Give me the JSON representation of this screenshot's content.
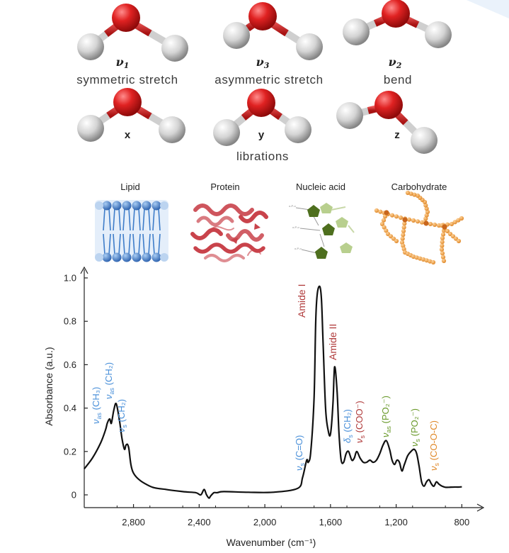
{
  "modes": {
    "v1": {
      "symbol": "ν",
      "sub": "1",
      "caption": "symmetric stretch"
    },
    "v3": {
      "symbol": "ν",
      "sub": "3",
      "caption": "asymmetric stretch"
    },
    "v2": {
      "symbol": "ν",
      "sub": "2",
      "caption": "bend"
    },
    "x": "x",
    "y": "y",
    "z": "z",
    "librations": "librations"
  },
  "biomolecules": [
    "Lipid",
    "Protein",
    "Nucleic acid",
    "Carbohydrate"
  ],
  "colors": {
    "oxygen": "#d01818",
    "hydrogen": "#d8d8d8",
    "lipid": "#3d7cc9",
    "protein": "#c9434b",
    "nucleic_green": "#4e6f1e",
    "nucleic_light": "#b8cf8e",
    "carb": "#e9a24c",
    "label_blue": "#4a90d9",
    "label_red": "#b03a3a",
    "label_green": "#6a9a2c",
    "label_orange": "#e08a2c"
  },
  "chart_data": {
    "type": "line",
    "xlabel": "Wavenumber (cm⁻¹)",
    "ylabel": "Absorbance (a.u.)",
    "xlim": [
      3100,
      780
    ],
    "ylim": [
      -0.02,
      1.05
    ],
    "xticks": [
      2800,
      2400,
      2000,
      1600,
      1200,
      800
    ],
    "xtick_labels": [
      "2,800",
      "2,400",
      "2,000",
      "1,600",
      "1,200",
      "800"
    ],
    "yticks": [
      0,
      0.2,
      0.4,
      0.6,
      0.8,
      1.0
    ],
    "ytick_labels": [
      "0",
      "0.2",
      "0.4",
      "0.6",
      "0.8",
      "1.0"
    ],
    "series": [
      {
        "x": [
          3100,
          3050,
          3000,
          2970,
          2960,
          2945,
          2935,
          2920,
          2905,
          2885,
          2870,
          2855,
          2845,
          2830,
          2800,
          2700,
          2600,
          2500,
          2420,
          2390,
          2370,
          2355,
          2340,
          2330,
          2310,
          2290,
          2250,
          2100,
          1950,
          1800,
          1770,
          1745,
          1735,
          1720,
          1700,
          1690,
          1680,
          1665,
          1655,
          1645,
          1630,
          1615,
          1600,
          1585,
          1575,
          1560,
          1548,
          1535,
          1520,
          1505,
          1490,
          1470,
          1455,
          1440,
          1420,
          1400,
          1380,
          1360,
          1340,
          1320,
          1300,
          1280,
          1260,
          1240,
          1225,
          1210,
          1195,
          1180,
          1165,
          1150,
          1130,
          1110,
          1090,
          1075,
          1060,
          1045,
          1030,
          1015,
          1000,
          985,
          970,
          955,
          940,
          920,
          900,
          880,
          850,
          820,
          800
        ],
        "y": [
          0.12,
          0.17,
          0.24,
          0.3,
          0.33,
          0.35,
          0.33,
          0.39,
          0.42,
          0.34,
          0.26,
          0.21,
          0.23,
          0.22,
          0.1,
          0.04,
          0.025,
          0.015,
          0.01,
          0.0,
          0.025,
          0.0,
          -0.015,
          -0.005,
          0.01,
          0.01,
          0.015,
          0.012,
          0.012,
          0.03,
          0.08,
          0.16,
          0.15,
          0.2,
          0.45,
          0.8,
          0.93,
          0.96,
          0.9,
          0.7,
          0.4,
          0.3,
          0.28,
          0.42,
          0.59,
          0.48,
          0.28,
          0.16,
          0.15,
          0.19,
          0.2,
          0.16,
          0.17,
          0.2,
          0.17,
          0.15,
          0.15,
          0.16,
          0.15,
          0.16,
          0.19,
          0.23,
          0.25,
          0.21,
          0.16,
          0.14,
          0.16,
          0.15,
          0.11,
          0.14,
          0.18,
          0.2,
          0.21,
          0.19,
          0.13,
          0.06,
          0.04,
          0.06,
          0.07,
          0.05,
          0.04,
          0.06,
          0.05,
          0.04,
          0.035,
          0.035,
          0.036,
          0.036,
          0.037
        ]
      }
    ],
    "annotations": [
      {
        "main": "ν",
        "sub": "as",
        "rest": "(CH₃)",
        "color": "label_blue"
      },
      {
        "main": "ν",
        "sub": "as",
        "rest": "(CH₂)",
        "color": "label_blue"
      },
      {
        "main": "ν",
        "sub": "s",
        "rest": "(CH₂)",
        "color": "label_blue"
      },
      {
        "main": "ν",
        "sub": "s",
        "rest": "(C=O)",
        "color": "label_blue"
      },
      {
        "main": "Amide I",
        "sub": "",
        "rest": "",
        "color": "label_red"
      },
      {
        "main": "Amide II",
        "sub": "",
        "rest": "",
        "color": "label_red"
      },
      {
        "main": "δ",
        "sub": "s",
        "rest": "(CH₂)",
        "color": "label_blue"
      },
      {
        "main": "ν",
        "sub": "s",
        "rest": "(COO⁻)",
        "color": "label_red"
      },
      {
        "main": "ν",
        "sub": "as",
        "rest": "(PO₂⁻)",
        "color": "label_green"
      },
      {
        "main": "ν",
        "sub": "s",
        "rest": "(PO₂⁻)",
        "color": "label_green"
      },
      {
        "main": "ν",
        "sub": "s",
        "rest": "(CO-O-C)",
        "color": "label_orange"
      }
    ]
  }
}
